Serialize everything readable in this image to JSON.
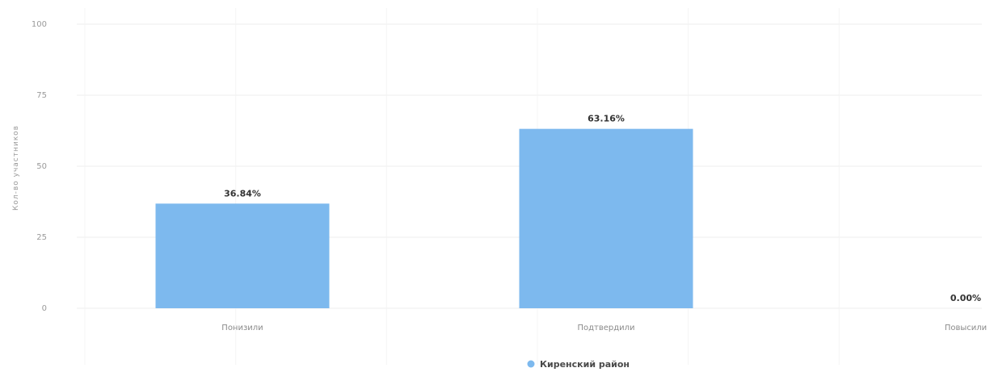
{
  "chart_data": {
    "type": "bar",
    "ylabel": "Кол-во участников",
    "ylim": [
      0,
      100
    ],
    "yticks": [
      0,
      25,
      50,
      75,
      100
    ],
    "grid": true,
    "legend_position": "bottom-center",
    "categories": [
      "Понизили",
      "Подтвердили",
      "Повысили"
    ],
    "series": [
      {
        "name": "Киренский район",
        "color": "#7db9ee",
        "values": [
          36.84,
          63.16,
          0.0
        ],
        "labels": [
          "36.84%",
          "63.16%",
          "0.00%"
        ]
      }
    ]
  }
}
